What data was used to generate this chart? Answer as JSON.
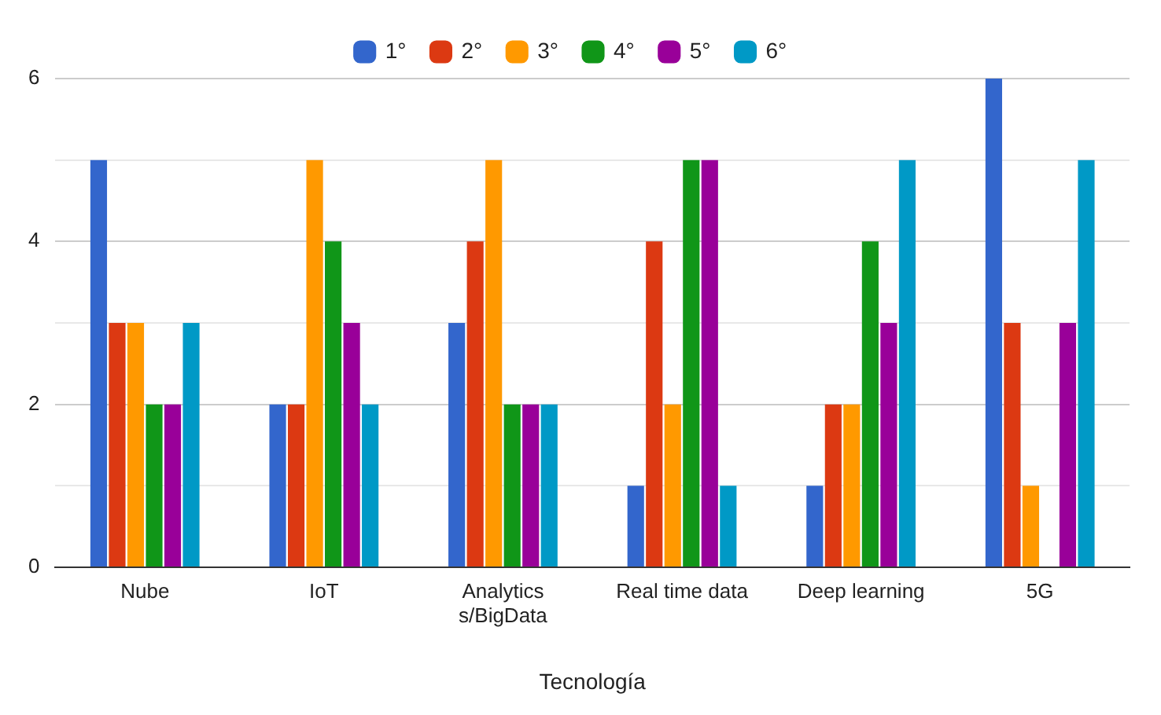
{
  "chart_data": {
    "type": "bar",
    "xlabel": "Tecnología",
    "categories": [
      "Nube",
      "IoT",
      "Analytics s/BigData",
      "Real time data",
      "Deep learning",
      "5G"
    ],
    "series": [
      {
        "name": "1°",
        "color": "#3366cc",
        "values": [
          5,
          2,
          3,
          1,
          1,
          6
        ]
      },
      {
        "name": "2°",
        "color": "#dc3912",
        "values": [
          3,
          2,
          4,
          4,
          2,
          3
        ]
      },
      {
        "name": "3°",
        "color": "#ff9900",
        "values": [
          3,
          5,
          5,
          2,
          2,
          1
        ]
      },
      {
        "name": "4°",
        "color": "#109618",
        "values": [
          2,
          4,
          2,
          5,
          4,
          0
        ]
      },
      {
        "name": "5°",
        "color": "#990099",
        "values": [
          2,
          3,
          2,
          5,
          3,
          3
        ]
      },
      {
        "name": "6°",
        "color": "#0099c6",
        "values": [
          3,
          2,
          2,
          1,
          5,
          5
        ]
      }
    ],
    "ylim": [
      0,
      6
    ],
    "yticks": [
      0,
      {
        "value": 1,
        "label": null
      },
      2,
      {
        "value": 3,
        "label": null
      },
      4,
      {
        "value": 5,
        "label": null
      },
      6
    ],
    "grid": "y",
    "legend": "top"
  }
}
